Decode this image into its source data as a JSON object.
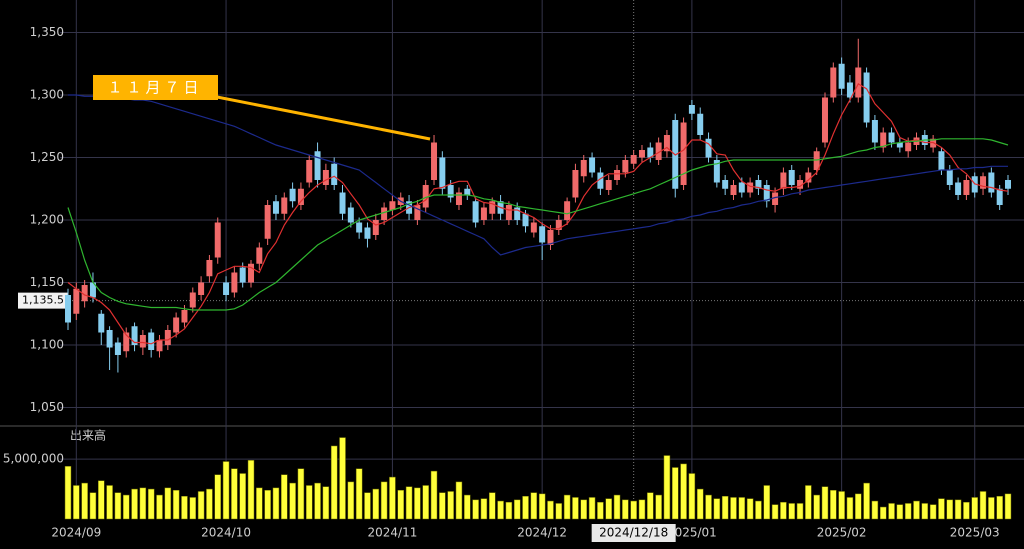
{
  "chart_data": [
    {
      "type": "candlestick",
      "up_color": "#f06a6a",
      "down_color": "#86cdee",
      "ylim": [
        1036,
        1376
      ],
      "yticks": [
        {
          "value": 1050,
          "label": "1,050"
        },
        {
          "value": 1100,
          "label": "1,100"
        },
        {
          "value": 1150,
          "label": "1,150"
        },
        {
          "value": 1200,
          "label": "1,200"
        },
        {
          "value": 1250,
          "label": "1,250"
        },
        {
          "value": 1300,
          "label": "1,300"
        },
        {
          "value": 1350,
          "label": "1,350"
        }
      ],
      "grid": true,
      "annotation": "１１月７日",
      "cursor_value": {
        "value": 1135.5,
        "label": "1,135.5"
      },
      "open": [
        1140,
        1125,
        1135,
        1150,
        1125,
        1112,
        1102,
        1095,
        1115,
        1098,
        1110,
        1095,
        1100,
        1110,
        1118,
        1130,
        1140,
        1155,
        1170,
        1150,
        1142,
        1162,
        1150,
        1165,
        1185,
        1215,
        1205,
        1225,
        1212,
        1230,
        1255,
        1228,
        1245,
        1222,
        1210,
        1198,
        1194,
        1188,
        1200,
        1208,
        1212,
        1215,
        1200,
        1210,
        1232,
        1250,
        1228,
        1212,
        1225,
        1215,
        1200,
        1205,
        1215,
        1200,
        1210,
        1205,
        1190,
        1195,
        1180,
        1192,
        1200,
        1218,
        1235,
        1250,
        1238,
        1224,
        1232,
        1238,
        1245,
        1250,
        1258,
        1248,
        1255,
        1280,
        1228,
        1292,
        1285,
        1265,
        1248,
        1232,
        1220,
        1230,
        1222,
        1232,
        1228,
        1212,
        1225,
        1240,
        1225,
        1230,
        1240,
        1262,
        1298,
        1325,
        1310,
        1298,
        1318,
        1280,
        1258,
        1270,
        1262,
        1255,
        1260,
        1268,
        1258,
        1255,
        1240,
        1230,
        1220,
        1235,
        1225,
        1238,
        1225,
        1232
      ],
      "high": [
        1145,
        1150,
        1152,
        1158,
        1128,
        1115,
        1106,
        1114,
        1118,
        1112,
        1113,
        1108,
        1116,
        1126,
        1132,
        1146,
        1155,
        1172,
        1202,
        1155,
        1163,
        1166,
        1168,
        1182,
        1216,
        1220,
        1222,
        1230,
        1230,
        1252,
        1262,
        1245,
        1250,
        1228,
        1214,
        1202,
        1198,
        1205,
        1214,
        1220,
        1222,
        1220,
        1216,
        1232,
        1268,
        1255,
        1232,
        1226,
        1228,
        1218,
        1214,
        1218,
        1220,
        1215,
        1214,
        1208,
        1202,
        1198,
        1196,
        1204,
        1218,
        1245,
        1252,
        1254,
        1242,
        1236,
        1244,
        1252,
        1256,
        1260,
        1262,
        1266,
        1272,
        1285,
        1282,
        1296,
        1290,
        1270,
        1252,
        1236,
        1232,
        1234,
        1234,
        1236,
        1232,
        1226,
        1242,
        1244,
        1236,
        1242,
        1258,
        1302,
        1326,
        1330,
        1316,
        1345,
        1322,
        1284,
        1274,
        1274,
        1266,
        1266,
        1270,
        1272,
        1268,
        1258,
        1244,
        1234,
        1236,
        1238,
        1238,
        1242,
        1228,
        1236
      ],
      "low": [
        1112,
        1120,
        1130,
        1134,
        1100,
        1080,
        1078,
        1090,
        1095,
        1092,
        1090,
        1090,
        1096,
        1106,
        1114,
        1126,
        1136,
        1150,
        1165,
        1135,
        1138,
        1146,
        1146,
        1160,
        1180,
        1200,
        1200,
        1210,
        1208,
        1226,
        1226,
        1224,
        1224,
        1200,
        1194,
        1185,
        1178,
        1184,
        1196,
        1204,
        1208,
        1200,
        1196,
        1206,
        1228,
        1220,
        1214,
        1208,
        1216,
        1194,
        1196,
        1200,
        1200,
        1196,
        1196,
        1190,
        1186,
        1168,
        1176,
        1188,
        1196,
        1214,
        1230,
        1234,
        1220,
        1220,
        1228,
        1234,
        1241,
        1246,
        1246,
        1244,
        1250,
        1218,
        1224,
        1280,
        1264,
        1246,
        1226,
        1220,
        1216,
        1218,
        1218,
        1220,
        1210,
        1206,
        1220,
        1224,
        1220,
        1226,
        1236,
        1258,
        1294,
        1300,
        1294,
        1294,
        1274,
        1256,
        1254,
        1258,
        1254,
        1250,
        1256,
        1256,
        1254,
        1236,
        1224,
        1216,
        1216,
        1218,
        1220,
        1218,
        1208,
        1220
      ],
      "close": [
        1118,
        1145,
        1148,
        1138,
        1110,
        1098,
        1092,
        1110,
        1100,
        1108,
        1096,
        1104,
        1112,
        1122,
        1128,
        1142,
        1150,
        1168,
        1198,
        1140,
        1158,
        1150,
        1165,
        1178,
        1212,
        1205,
        1218,
        1215,
        1225,
        1248,
        1232,
        1240,
        1228,
        1205,
        1198,
        1190,
        1185,
        1200,
        1210,
        1215,
        1218,
        1205,
        1212,
        1228,
        1262,
        1225,
        1218,
        1222,
        1220,
        1198,
        1210,
        1215,
        1205,
        1212,
        1200,
        1195,
        1198,
        1182,
        1192,
        1200,
        1215,
        1240,
        1248,
        1238,
        1225,
        1232,
        1240,
        1248,
        1252,
        1256,
        1250,
        1262,
        1268,
        1225,
        1278,
        1285,
        1268,
        1250,
        1230,
        1225,
        1228,
        1222,
        1230,
        1225,
        1215,
        1222,
        1238,
        1228,
        1232,
        1238,
        1255,
        1298,
        1322,
        1305,
        1298,
        1322,
        1278,
        1262,
        1270,
        1262,
        1258,
        1262,
        1266,
        1260,
        1265,
        1240,
        1228,
        1220,
        1232,
        1222,
        1235,
        1222,
        1212,
        1225
      ],
      "series": [
        {
          "color": "#e03030",
          "values": [
            1150,
            1145,
            1140,
            1138,
            1134,
            1128,
            1118,
            1108,
            1102,
            1102,
            1101,
            1104,
            1104,
            1108,
            1113,
            1122,
            1131,
            1142,
            1157,
            1160,
            1163,
            1163,
            1162,
            1158,
            1173,
            1182,
            1196,
            1206,
            1215,
            1222,
            1228,
            1232,
            1235,
            1230,
            1221,
            1212,
            1201,
            1196,
            1198,
            1202,
            1206,
            1210,
            1212,
            1216,
            1225,
            1226,
            1229,
            1231,
            1231,
            1217,
            1214,
            1213,
            1210,
            1208,
            1208,
            1205,
            1202,
            1197,
            1193,
            1193,
            1197,
            1206,
            1219,
            1228,
            1233,
            1237,
            1237,
            1237,
            1239,
            1246,
            1250,
            1254,
            1258,
            1252,
            1256,
            1264,
            1264,
            1261,
            1253,
            1252,
            1240,
            1231,
            1227,
            1226,
            1224,
            1223,
            1226,
            1226,
            1227,
            1232,
            1238,
            1252,
            1269,
            1284,
            1296,
            1309,
            1305,
            1293,
            1286,
            1279,
            1266,
            1263,
            1264,
            1262,
            1262,
            1258,
            1252,
            1242,
            1237,
            1229,
            1227,
            1226,
            1224,
            1223
          ]
        },
        {
          "color": "#2fb52f",
          "values": [
            1210,
            1190,
            1168,
            1150,
            1142,
            1138,
            1135,
            1133,
            1132,
            1131,
            1130,
            1130,
            1130,
            1130,
            1129,
            1128,
            1128,
            1128,
            1128,
            1128,
            1129,
            1132,
            1137,
            1142,
            1146,
            1150,
            1156,
            1162,
            1168,
            1174,
            1180,
            1184,
            1188,
            1192,
            1196,
            1200,
            1202,
            1204,
            1206,
            1208,
            1210,
            1213,
            1215,
            1218,
            1220,
            1220,
            1220,
            1220,
            1220,
            1219,
            1217,
            1216,
            1214,
            1213,
            1211,
            1210,
            1209,
            1208,
            1207,
            1206,
            1205,
            1207,
            1209,
            1211,
            1213,
            1215,
            1217,
            1219,
            1221,
            1223,
            1225,
            1228,
            1231,
            1234,
            1237,
            1240,
            1242,
            1244,
            1245,
            1247,
            1248,
            1248,
            1248,
            1248,
            1248,
            1248,
            1248,
            1248,
            1248,
            1248,
            1248,
            1249,
            1250,
            1251,
            1253,
            1255,
            1256,
            1258,
            1259,
            1261,
            1262,
            1263,
            1263,
            1264,
            1264,
            1265,
            1265,
            1265,
            1265,
            1265,
            1265,
            1264,
            1262,
            1260
          ]
        },
        {
          "color": "#1c2a8c",
          "values": [
            1300,
            1300,
            1299,
            1299,
            1298,
            1298,
            1297,
            1297,
            1296,
            1296,
            1295,
            1293,
            1291,
            1289,
            1287,
            1285,
            1283,
            1281,
            1279,
            1277,
            1275,
            1272,
            1269,
            1266,
            1263,
            1260,
            1258,
            1256,
            1254,
            1252,
            1250,
            1248,
            1246,
            1244,
            1242,
            1240,
            1235,
            1230,
            1225,
            1220,
            1215,
            1212,
            1209,
            1206,
            1203,
            1200,
            1197,
            1194,
            1191,
            1188,
            1185,
            1178,
            1172,
            1174,
            1176,
            1178,
            1179,
            1180,
            1181,
            1183,
            1185,
            1186,
            1187,
            1188,
            1189,
            1190,
            1191,
            1192,
            1193,
            1194,
            1195,
            1197,
            1198,
            1200,
            1201,
            1203,
            1204,
            1206,
            1207,
            1209,
            1210,
            1212,
            1213,
            1215,
            1216,
            1218,
            1219,
            1221,
            1222,
            1224,
            1225,
            1226,
            1227,
            1228,
            1229,
            1230,
            1231,
            1232,
            1233,
            1234,
            1235,
            1236,
            1237,
            1238,
            1239,
            1240,
            1240,
            1241,
            1241,
            1242,
            1242,
            1243,
            1243,
            1243
          ]
        }
      ]
    },
    {
      "type": "bar",
      "title": "出来高",
      "color": "#ffff3a",
      "ylim": [
        0,
        7600000
      ],
      "yticks": [
        {
          "value": 5000000,
          "label": "5,000,000"
        }
      ],
      "cursor_label": "2024/12/18",
      "categories": [
        null,
        "2024/09",
        null,
        null,
        null,
        null,
        null,
        null,
        null,
        null,
        null,
        null,
        null,
        null,
        null,
        null,
        null,
        null,
        null,
        "2024/10",
        null,
        null,
        null,
        null,
        null,
        null,
        null,
        null,
        null,
        null,
        null,
        null,
        null,
        null,
        null,
        null,
        null,
        null,
        null,
        "2024/11",
        null,
        null,
        null,
        null,
        null,
        null,
        null,
        null,
        null,
        null,
        null,
        null,
        null,
        null,
        null,
        null,
        null,
        "2024/12",
        null,
        null,
        null,
        null,
        null,
        null,
        null,
        null,
        null,
        null,
        null,
        null,
        null,
        null,
        null,
        null,
        null,
        "2025/01",
        null,
        null,
        null,
        null,
        null,
        null,
        null,
        null,
        null,
        null,
        null,
        null,
        null,
        null,
        null,
        null,
        null,
        "2025/02",
        null,
        null,
        null,
        null,
        null,
        null,
        null,
        null,
        null,
        null,
        null,
        null,
        null,
        null,
        null,
        "2025/03",
        null,
        null,
        null,
        null
      ],
      "values": [
        4400000,
        2800000,
        3000000,
        2200000,
        3200000,
        2800000,
        2200000,
        2000000,
        2500000,
        2600000,
        2500000,
        2000000,
        2600000,
        2400000,
        1900000,
        1800000,
        2300000,
        2500000,
        3700000,
        4800000,
        4200000,
        3800000,
        4900000,
        2600000,
        2400000,
        2600000,
        3700000,
        3000000,
        4200000,
        2800000,
        3000000,
        2700000,
        6100000,
        6800000,
        3100000,
        4200000,
        2200000,
        2500000,
        3100000,
        3500000,
        2400000,
        2700000,
        2600000,
        2800000,
        4000000,
        2200000,
        2300000,
        3100000,
        2000000,
        1600000,
        1700000,
        2200000,
        1500000,
        1400000,
        1600000,
        1900000,
        2200000,
        2100000,
        1500000,
        1300000,
        2000000,
        1800000,
        1600000,
        1800000,
        1400000,
        1700000,
        2000000,
        1600000,
        1500000,
        1600000,
        2200000,
        2000000,
        5300000,
        4300000,
        4600000,
        3800000,
        2500000,
        2000000,
        1700000,
        1900000,
        1800000,
        1800000,
        1700000,
        1500000,
        2800000,
        1200000,
        1400000,
        1300000,
        1300000,
        2800000,
        2000000,
        2700000,
        2400000,
        2300000,
        1800000,
        2100000,
        3000000,
        1500000,
        1000000,
        1300000,
        1200000,
        1300000,
        1500000,
        1300000,
        1200000,
        1700000,
        1600000,
        1600000,
        1400000,
        1800000,
        2300000,
        1800000,
        1900000,
        2100000
      ]
    }
  ]
}
